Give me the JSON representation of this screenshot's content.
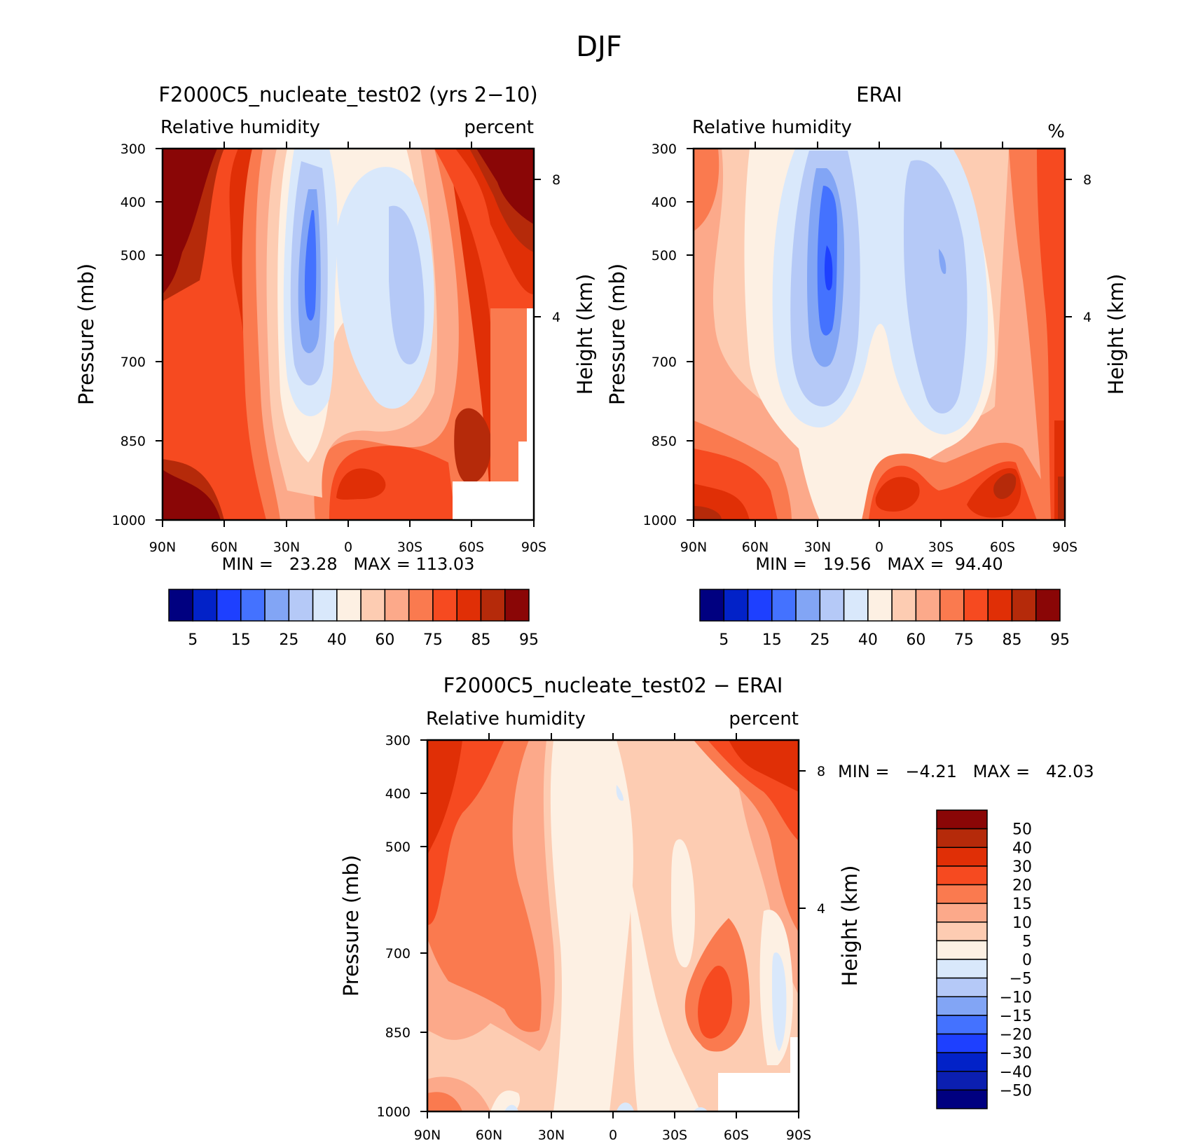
{
  "figure": {
    "title": "DJF"
  },
  "chart_data": [
    {
      "type": "heatmap",
      "title": "F2000C5_nucleate_test02 (yrs 2−10)",
      "subtitle_left": "Relative humidity",
      "subtitle_right": "percent",
      "ylabel": "Pressure (mb)",
      "ylabel_right": "Height (km)",
      "x_ticks": [
        "90N",
        "60N",
        "30N",
        "0",
        "30S",
        "60S",
        "90S"
      ],
      "y_ticks": [
        "300",
        "400",
        "500",
        "700",
        "850",
        "1000"
      ],
      "y_ticks_right": [
        "8",
        "4"
      ],
      "ylim": [
        1000,
        300
      ],
      "min_max_text": "MIN =   23.28   MAX = 113.03",
      "colorbar": {
        "orientation": "horizontal",
        "levels": [
          "5",
          "15",
          "25",
          "40",
          "60",
          "75",
          "85",
          "95"
        ],
        "colors": [
          "#000080",
          "#0222c8",
          "#1e40ff",
          "#4472ff",
          "#82a5f5",
          "#b5c9f7",
          "#d9e8fb",
          "#fdf0e3",
          "#fdccb2",
          "#fca98a",
          "#fa7a4f",
          "#f64a20",
          "#e02f06",
          "#b52a0a",
          "#8a0606"
        ]
      }
    },
    {
      "type": "heatmap",
      "title": "ERAI",
      "subtitle_left": "Relative humidity",
      "subtitle_right": "%",
      "ylabel": "Pressure (mb)",
      "ylabel_right": "Height (km)",
      "x_ticks": [
        "90N",
        "60N",
        "30N",
        "0",
        "30S",
        "60S",
        "90S"
      ],
      "y_ticks": [
        "300",
        "400",
        "500",
        "700",
        "850",
        "1000"
      ],
      "y_ticks_right": [
        "8",
        "4"
      ],
      "ylim": [
        1000,
        300
      ],
      "min_max_text": "MIN =   19.56   MAX =  94.40",
      "colorbar": {
        "orientation": "horizontal",
        "levels": [
          "5",
          "15",
          "25",
          "40",
          "60",
          "75",
          "85",
          "95"
        ],
        "colors": [
          "#000080",
          "#0222c8",
          "#1e40ff",
          "#4472ff",
          "#82a5f5",
          "#b5c9f7",
          "#d9e8fb",
          "#fdf0e3",
          "#fdccb2",
          "#fca98a",
          "#fa7a4f",
          "#f64a20",
          "#e02f06",
          "#b52a0a",
          "#8a0606"
        ]
      }
    },
    {
      "type": "heatmap",
      "title": "F2000C5_nucleate_test02 − ERAI",
      "subtitle_left": "Relative humidity",
      "subtitle_right": "percent",
      "ylabel": "Pressure (mb)",
      "ylabel_right": "Height (km)",
      "x_ticks": [
        "90N",
        "60N",
        "30N",
        "0",
        "30S",
        "60S",
        "90S"
      ],
      "y_ticks": [
        "300",
        "400",
        "500",
        "700",
        "850",
        "1000"
      ],
      "y_ticks_right": [
        "8",
        "4"
      ],
      "ylim": [
        1000,
        300
      ],
      "min_max_text": "MIN =   −4.21   MAX =   42.03",
      "colorbar": {
        "orientation": "vertical",
        "levels": [
          "50",
          "40",
          "30",
          "20",
          "15",
          "10",
          "5",
          "0",
          "−5",
          "−10",
          "−15",
          "−20",
          "−30",
          "−40",
          "−50"
        ],
        "colors": [
          "#8a0606",
          "#b52a0a",
          "#e02f06",
          "#f64a20",
          "#fa7a4f",
          "#fca98a",
          "#fdccb2",
          "#fdf0e3",
          "#d9e8fb",
          "#b5c9f7",
          "#82a5f5",
          "#4472ff",
          "#1e40ff",
          "#0222c8",
          "#0b1fb0",
          "#000080"
        ]
      }
    }
  ]
}
